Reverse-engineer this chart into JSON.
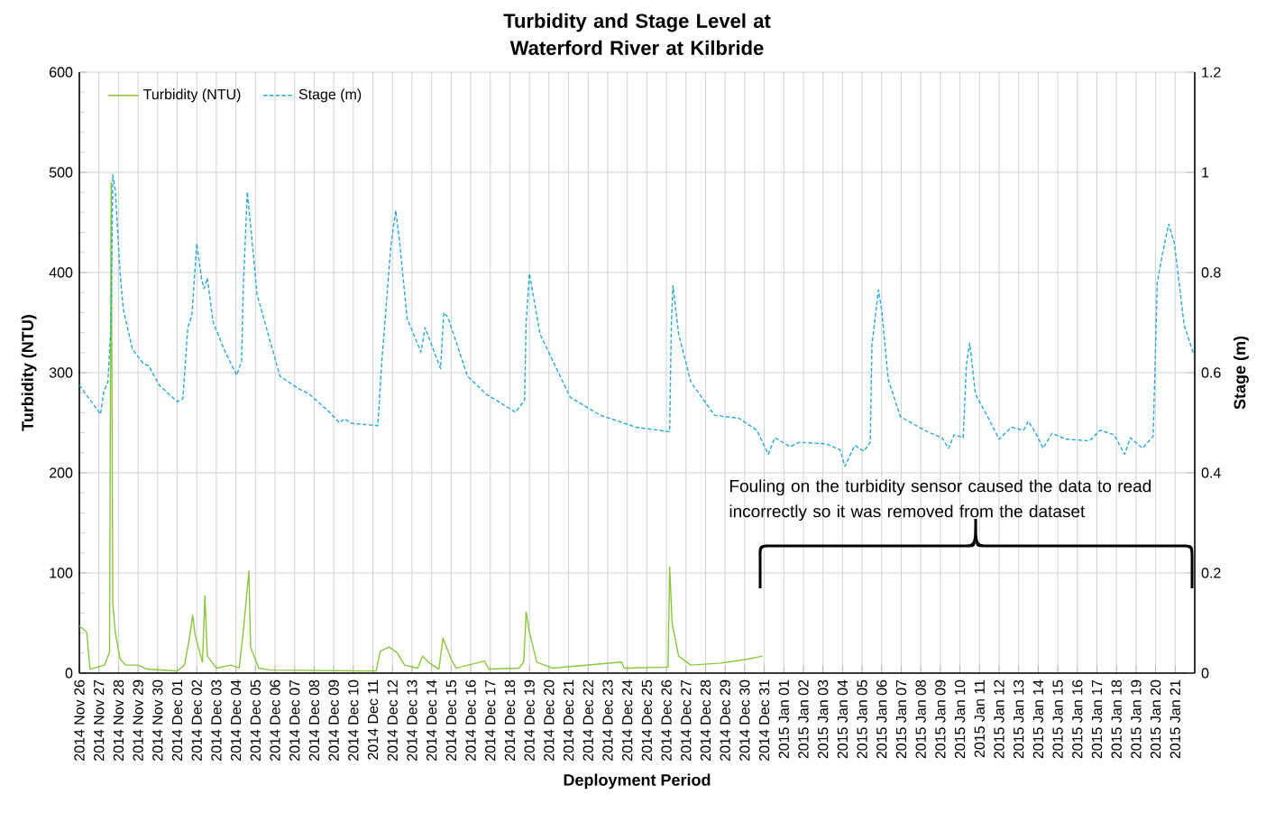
{
  "chart_data": {
    "type": "line",
    "title": "Turbidity and Stage Level at Waterford River at Kilbride",
    "xlabel": "Deployment Period",
    "ylabel": "Turbidity (NTU)",
    "y2label": "Stage (m)",
    "xlim": [
      "2014-11-26",
      "2015-01-22"
    ],
    "ylim": [
      0,
      600
    ],
    "yticks": [
      0,
      100,
      200,
      300,
      400,
      500,
      600
    ],
    "y2lim": [
      0,
      1.2
    ],
    "y2ticks": [
      0,
      0.2,
      0.4,
      0.6,
      0.8,
      1,
      1.2
    ],
    "xticks": [
      {
        "value": "2014-11-26",
        "label": "2014 Nov 26"
      },
      {
        "value": "2014-11-27",
        "label": "2014 Nov 27"
      },
      {
        "value": "2014-11-28",
        "label": "2014 Nov 28"
      },
      {
        "value": "2014-11-29",
        "label": "2014 Nov 29"
      },
      {
        "value": "2014-11-30",
        "label": "2014 Nov 30"
      },
      {
        "value": "2014-12-01",
        "label": "2014 Dec 01"
      },
      {
        "value": "2014-12-02",
        "label": "2014 Dec 02"
      },
      {
        "value": "2014-12-03",
        "label": "2014 Dec 03"
      },
      {
        "value": "2014-12-04",
        "label": "2014 Dec 04"
      },
      {
        "value": "2014-12-05",
        "label": "2014 Dec 05"
      },
      {
        "value": "2014-12-06",
        "label": "2014 Dec 06"
      },
      {
        "value": "2014-12-07",
        "label": "2014 Dec 07"
      },
      {
        "value": "2014-12-08",
        "label": "2014 Dec 08"
      },
      {
        "value": "2014-12-09",
        "label": "2014 Dec 09"
      },
      {
        "value": "2014-12-10",
        "label": "2014 Dec 10"
      },
      {
        "value": "2014-12-11",
        "label": "2014 Dec 11"
      },
      {
        "value": "2014-12-12",
        "label": "2014 Dec 12"
      },
      {
        "value": "2014-12-13",
        "label": "2014 Dec 13"
      },
      {
        "value": "2014-12-14",
        "label": "2014 Dec 14"
      },
      {
        "value": "2014-12-15",
        "label": "2014 Dec 15"
      },
      {
        "value": "2014-12-16",
        "label": "2014 Dec 16"
      },
      {
        "value": "2014-12-17",
        "label": "2014 Dec 17"
      },
      {
        "value": "2014-12-18",
        "label": "2014 Dec 18"
      },
      {
        "value": "2014-12-19",
        "label": "2014 Dec 19"
      },
      {
        "value": "2014-12-20",
        "label": "2014 Dec 20"
      },
      {
        "value": "2014-12-21",
        "label": "2014 Dec 21"
      },
      {
        "value": "2014-12-22",
        "label": "2014 Dec 22"
      },
      {
        "value": "2014-12-23",
        "label": "2014 Dec 23"
      },
      {
        "value": "2014-12-24",
        "label": "2014 Dec 24"
      },
      {
        "value": "2014-12-25",
        "label": "2014 Dec 25"
      },
      {
        "value": "2014-12-26",
        "label": "2014 Dec 26"
      },
      {
        "value": "2014-12-27",
        "label": "2014 Dec 27"
      },
      {
        "value": "2014-12-28",
        "label": "2014 Dec 28"
      },
      {
        "value": "2014-12-29",
        "label": "2014 Dec 29"
      },
      {
        "value": "2014-12-30",
        "label": "2014 Dec 30"
      },
      {
        "value": "2014-12-31",
        "label": "2014 Dec 31"
      },
      {
        "value": "2015-01-01",
        "label": "2015 Jan 01"
      },
      {
        "value": "2015-01-02",
        "label": "2015 Jan 02"
      },
      {
        "value": "2015-01-03",
        "label": "2015 Jan 03"
      },
      {
        "value": "2015-01-04",
        "label": "2015 Jan 04"
      },
      {
        "value": "2015-01-05",
        "label": "2015 Jan 05"
      },
      {
        "value": "2015-01-06",
        "label": "2015 Jan 06"
      },
      {
        "value": "2015-01-07",
        "label": "2015 Jan 07"
      },
      {
        "value": "2015-01-08",
        "label": "2015 Jan 08"
      },
      {
        "value": "2015-01-09",
        "label": "2015 Jan 09"
      },
      {
        "value": "2015-01-10",
        "label": "2015 Jan 10"
      },
      {
        "value": "2015-01-11",
        "label": "2015 Jan 11"
      },
      {
        "value": "2015-01-12",
        "label": "2015 Jan 12"
      },
      {
        "value": "2015-01-13",
        "label": "2015 Jan 13"
      },
      {
        "value": "2015-01-14",
        "label": "2015 Jan 14"
      },
      {
        "value": "2015-01-15",
        "label": "2015 Jan 15"
      },
      {
        "value": "2015-01-16",
        "label": "2015 Jan 16"
      },
      {
        "value": "2015-01-17",
        "label": "2015 Jan 17"
      },
      {
        "value": "2015-01-18",
        "label": "2015 Jan 18"
      },
      {
        "value": "2015-01-19",
        "label": "2015 Jan 19"
      },
      {
        "value": "2015-01-20",
        "label": "2015 Jan 20"
      },
      {
        "value": "2015-01-21",
        "label": "2015 Jan 21"
      }
    ],
    "grid": true,
    "legend": "top left",
    "annotations": [
      "Fouling on the turbidity sensor caused the data to read incorrectly so it was removed from the dataset"
    ],
    "series": [
      {
        "name": "Turbidity (NTU)",
        "color": "#8cc63f",
        "line_style": "solid",
        "x": [
          "2014-11-26T00:00",
          "2014-11-26T09:00",
          "2014-11-26T13:00",
          "2014-11-27T07:00",
          "2014-11-27T13:00",
          "2014-11-27T15:00",
          "2014-11-27T17:00",
          "2014-11-27T20:00",
          "2014-11-28T02:00",
          "2014-11-28T09:00",
          "2014-11-29T00:00",
          "2014-11-29T11:00",
          "2014-12-01T00:00",
          "2014-12-01T09:00",
          "2014-12-01T15:00",
          "2014-12-01T19:00",
          "2014-12-01T22:00",
          "2014-12-02T07:00",
          "2014-12-02T10:00",
          "2014-12-02T13:00",
          "2014-12-03T00:00",
          "2014-12-03T18:00",
          "2014-12-04T04:00",
          "2014-12-04T09:00",
          "2014-12-04T16:00",
          "2014-12-04T18:00",
          "2014-12-05T04:00",
          "2014-12-05T18:00",
          "2014-12-11T04:00",
          "2014-12-11T09:00",
          "2014-12-11T20:00",
          "2014-12-12T06:00",
          "2014-12-12T15:00",
          "2014-12-13T07:00",
          "2014-12-13T13:00",
          "2014-12-13T20:00",
          "2014-12-14T09:00",
          "2014-12-14T14:00",
          "2014-12-15T00:00",
          "2014-12-15T06:00",
          "2014-12-16T17:00",
          "2014-12-16T22:00",
          "2014-12-18T11:00",
          "2014-12-18T17:00",
          "2014-12-18T20:00",
          "2014-12-19T00:00",
          "2014-12-19T09:00",
          "2014-12-20T04:00",
          "2014-12-23T17:00",
          "2014-12-23T20:00",
          "2014-12-26T02:00",
          "2014-12-26T04:00",
          "2014-12-26T07:00",
          "2014-12-26T15:00",
          "2014-12-27T06:00",
          "2014-12-28T19:00",
          "2014-12-30T04:00",
          "2014-12-30T22:00"
        ],
        "values": [
          47,
          41,
          4,
          8,
          21,
          490,
          70,
          41,
          14,
          8,
          8,
          4,
          2,
          8,
          35,
          58,
          38,
          11,
          77,
          17,
          5,
          8,
          5,
          41,
          102,
          26,
          5,
          3,
          2,
          22,
          26,
          20,
          8,
          5,
          17,
          11,
          4,
          35,
          14,
          5,
          12,
          4,
          5,
          11,
          61,
          41,
          11,
          5,
          11,
          5,
          6,
          106,
          50,
          17,
          8,
          10,
          14,
          17
        ]
      },
      {
        "name": "Stage (m)",
        "color": "#29a9d9",
        "line_style": "dashed",
        "axis": "y2",
        "x": [
          "2014-11-26T00:00",
          "2014-11-27T02:00",
          "2014-11-27T06:00",
          "2014-11-27T11:00",
          "2014-11-27T15:00",
          "2014-11-27T17:00",
          "2014-11-27T20:00",
          "2014-11-28T02:00",
          "2014-11-28T06:00",
          "2014-11-28T17:00",
          "2014-11-29T07:00",
          "2014-11-29T13:00",
          "2014-11-30T02:00",
          "2014-12-01T00:00",
          "2014-12-01T07:00",
          "2014-12-01T13:00",
          "2014-12-01T18:00",
          "2014-12-02T00:00",
          "2014-12-02T06:00",
          "2014-12-02T09:00",
          "2014-12-02T13:00",
          "2014-12-02T20:00",
          "2014-12-03T11:00",
          "2014-12-04T01:00",
          "2014-12-04T07:00",
          "2014-12-04T09:00",
          "2014-12-04T14:00",
          "2014-12-04T18:00",
          "2014-12-05T02:00",
          "2014-12-06T06:00",
          "2014-12-07T04:00",
          "2014-12-07T18:00",
          "2014-12-08T17:00",
          "2014-12-09T07:00",
          "2014-12-09T13:00",
          "2014-12-09T22:00",
          "2014-12-11T06:00",
          "2014-12-11T11:00",
          "2014-12-11T22:00",
          "2014-12-12T04:00",
          "2014-12-12T09:00",
          "2014-12-12T18:00",
          "2014-12-13T11:00",
          "2014-12-13T16:00",
          "2014-12-14T11:00",
          "2014-12-14T15:00",
          "2014-12-14T20:00",
          "2014-12-15T20:00",
          "2014-12-16T19:00",
          "2014-12-18T07:00",
          "2014-12-18T18:00",
          "2014-12-18T20:00",
          "2014-12-19T00:00",
          "2014-12-19T13:00",
          "2014-12-21T02:00",
          "2014-12-22T15:00",
          "2014-12-24T11:00",
          "2014-12-26T04:00",
          "2014-12-26T06:00",
          "2014-12-26T08:00",
          "2014-12-26T15:00",
          "2014-12-27T06:00",
          "2014-12-28T11:00",
          "2014-12-29T17:00",
          "2014-12-30T15:00",
          "2014-12-31T05:00",
          "2014-12-31T13:00",
          "2015-01-01T08:00",
          "2015-01-01T19:00",
          "2015-01-03T04:00",
          "2015-01-03T21:00",
          "2015-01-04T03:00",
          "2015-01-04T15:00",
          "2015-01-05T02:00",
          "2015-01-05T10:00",
          "2015-01-05T12:00",
          "2015-01-05T20:00",
          "2015-01-06T00:00",
          "2015-01-06T08:00",
          "2015-01-06T23:00",
          "2015-01-08T08:00",
          "2015-01-09T02:00",
          "2015-01-09T10:00",
          "2015-01-09T17:00",
          "2015-01-10T04:00",
          "2015-01-10T08:00",
          "2015-01-10T12:00",
          "2015-01-10T19:00",
          "2015-01-11T11:00",
          "2015-01-12T00:00",
          "2015-01-12T15:00",
          "2015-01-13T06:00",
          "2015-01-13T12:00",
          "2015-01-13T21:00",
          "2015-01-14T06:00",
          "2015-01-14T17:00",
          "2015-01-15T10:00",
          "2015-01-16T15:00",
          "2015-01-17T04:00",
          "2015-01-17T21:00",
          "2015-01-18T10:00",
          "2015-01-18T17:00",
          "2015-01-19T08:00",
          "2015-01-19T21:00",
          "2015-01-20T02:00",
          "2015-01-20T08:00",
          "2015-01-20T16:00",
          "2015-01-20T23:00",
          "2015-01-21T11:00",
          "2015-01-21T23:00"
        ],
        "values": [
          0.575,
          0.517,
          0.563,
          0.581,
          0.701,
          0.995,
          0.966,
          0.798,
          0.726,
          0.647,
          0.617,
          0.614,
          0.575,
          0.542,
          0.548,
          0.69,
          0.714,
          0.858,
          0.786,
          0.768,
          0.789,
          0.701,
          0.641,
          0.595,
          0.623,
          0.768,
          0.961,
          0.894,
          0.756,
          0.593,
          0.569,
          0.557,
          0.524,
          0.5,
          0.508,
          0.499,
          0.494,
          0.623,
          0.852,
          0.924,
          0.858,
          0.708,
          0.641,
          0.69,
          0.608,
          0.72,
          0.711,
          0.593,
          0.557,
          0.521,
          0.545,
          0.701,
          0.798,
          0.677,
          0.551,
          0.515,
          0.491,
          0.482,
          0.695,
          0.774,
          0.677,
          0.581,
          0.515,
          0.509,
          0.485,
          0.437,
          0.47,
          0.452,
          0.461,
          0.458,
          0.446,
          0.413,
          0.455,
          0.443,
          0.461,
          0.654,
          0.765,
          0.726,
          0.587,
          0.512,
          0.482,
          0.47,
          0.449,
          0.476,
          0.47,
          0.617,
          0.659,
          0.557,
          0.509,
          0.467,
          0.491,
          0.485,
          0.503,
          0.479,
          0.449,
          0.479,
          0.467,
          0.464,
          0.485,
          0.476,
          0.437,
          0.47,
          0.449,
          0.473,
          0.78,
          0.834,
          0.897,
          0.858,
          0.695,
          0.635
        ]
      }
    ]
  }
}
